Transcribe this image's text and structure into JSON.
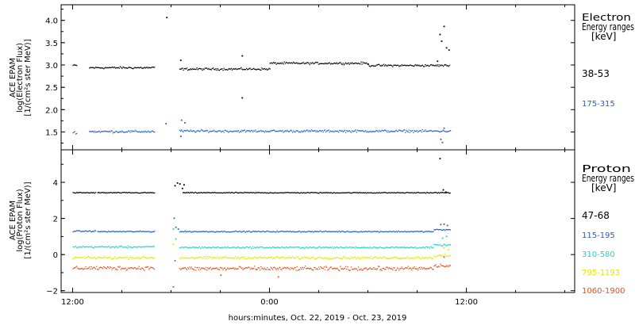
{
  "chart_data": [
    {
      "type": "scatter",
      "ylabel_lines": [
        "ACE EPAM",
        "log(Electron Flux)",
        "[1/(cm²s ster MeV)]"
      ],
      "ylim": [
        1.1,
        4.35
      ],
      "yticks": [
        1.5,
        2.0,
        2.5,
        3.0,
        3.5,
        4.0
      ],
      "ytick_labels": [
        "1.5",
        "2.0",
        "2.5",
        "3.0",
        "3.5",
        "4.0"
      ],
      "legend": {
        "title_lines": [
          "Electron",
          "Energy ranges",
          "[keV]"
        ],
        "entries": [
          "38-53",
          "175-315"
        ]
      },
      "series": [
        {
          "name": "38-53",
          "color": "#000000",
          "segments": [
            {
              "x": [
                0.0,
                0.25
              ],
              "base": 3.0
            },
            {
              "x": [
                1.0,
                5.0
              ],
              "base": 2.95
            },
            {
              "x": [
                6.5,
                12.0
              ],
              "base": 2.92
            },
            {
              "x": [
                12.0,
                18.0
              ],
              "base": 3.05
            },
            {
              "x": [
                18.0,
                23.0
              ],
              "base": 3.0
            }
          ],
          "noise": 0.035,
          "extra_points": [
            [
              5.7,
              4.08
            ],
            [
              6.55,
              3.12
            ],
            [
              10.3,
              3.22
            ],
            [
              10.3,
              2.28
            ],
            [
              22.2,
              3.1
            ],
            [
              22.35,
              3.7
            ],
            [
              22.45,
              3.55
            ],
            [
              22.6,
              3.88
            ],
            [
              22.75,
              3.4
            ],
            [
              22.9,
              3.35
            ]
          ]
        },
        {
          "name": "175-315",
          "color": "#1f5fd6",
          "segments": [
            {
              "x": [
                0.0,
                0.25
              ],
              "base": 1.5
            },
            {
              "x": [
                1.0,
                5.0
              ],
              "base": 1.52
            },
            {
              "x": [
                6.5,
                23.0
              ],
              "base": 1.53
            }
          ],
          "noise": 0.04,
          "extra_points": [
            [
              5.65,
              1.7
            ],
            [
              6.6,
              1.78
            ],
            [
              6.8,
              1.72
            ],
            [
              6.55,
              1.42
            ],
            [
              22.4,
              1.35
            ],
            [
              22.5,
              1.28
            ],
            [
              22.6,
              1.6
            ]
          ]
        }
      ]
    },
    {
      "type": "scatter",
      "ylabel_lines": [
        "ACE EPAM",
        "log(Proton Flux)",
        "[1/(cm²s ster MeV)]"
      ],
      "ylim": [
        -2.1,
        5.8
      ],
      "yticks": [
        -2,
        0,
        2,
        4
      ],
      "ytick_labels": [
        "−2",
        "0",
        "2",
        "4"
      ],
      "legend": {
        "title_lines": [
          "Proton",
          "Energy ranges",
          "[keV]"
        ],
        "entries": [
          "47-68",
          "115-195",
          "310-580",
          "795-1193",
          "1060-1900"
        ]
      },
      "series": [
        {
          "name": "47-68",
          "color": "#000000",
          "segments": [
            {
              "x": [
                0.0,
                1.4
              ],
              "base": 3.45
            },
            {
              "x": [
                1.5,
                5.0
              ],
              "base": 3.45
            },
            {
              "x": [
                6.7,
                23.0
              ],
              "base": 3.45
            }
          ],
          "noise": 0.04,
          "extra_points": [
            [
              6.2,
              3.85
            ],
            [
              6.35,
              4.0
            ],
            [
              6.5,
              3.95
            ],
            [
              6.65,
              3.7
            ],
            [
              6.75,
              3.9
            ],
            [
              22.35,
              5.35
            ],
            [
              22.55,
              3.62
            ],
            [
              22.7,
              3.5
            ]
          ]
        },
        {
          "name": "115-195",
          "color": "#1f5fd6",
          "segments": [
            {
              "x": [
                0.0,
                1.4
              ],
              "base": 1.32
            },
            {
              "x": [
                1.5,
                5.0
              ],
              "base": 1.3
            },
            {
              "x": [
                6.5,
                22.0
              ],
              "base": 1.3
            },
            {
              "x": [
                22.0,
                23.0
              ],
              "base": 1.4
            }
          ],
          "noise": 0.05,
          "extra_points": [
            [
              6.15,
              2.05
            ],
            [
              6.25,
              1.55
            ],
            [
              6.4,
              1.45
            ],
            [
              22.4,
              1.7
            ],
            [
              22.6,
              1.72
            ],
            [
              22.8,
              1.65
            ]
          ]
        },
        {
          "name": "310-580",
          "color": "#22d3d3",
          "segments": [
            {
              "x": [
                0.0,
                5.0
              ],
              "base": 0.45
            },
            {
              "x": [
                6.5,
                22.0
              ],
              "base": 0.42
            },
            {
              "x": [
                22.0,
                23.0
              ],
              "base": 0.55
            }
          ],
          "noise": 0.07,
          "extra_points": [
            [
              6.1,
              1.45
            ],
            [
              6.25,
              0.9
            ],
            [
              22.5,
              0.95
            ],
            [
              22.75,
              1.05
            ]
          ]
        },
        {
          "name": "795-1193",
          "color": "#e6e600",
          "segments": [
            {
              "x": [
                0.0,
                5.0
              ],
              "base": -0.15
            },
            {
              "x": [
                6.5,
                22.0
              ],
              "base": -0.15
            },
            {
              "x": [
                22.0,
                23.0
              ],
              "base": -0.05
            }
          ],
          "noise": 0.1,
          "extra_points": [
            [
              6.1,
              0.6
            ],
            [
              22.6,
              0.4
            ],
            [
              22.85,
              0.3
            ]
          ]
        },
        {
          "name": "1060-1900",
          "color": "#e8501a",
          "segments": [
            {
              "x": [
                0.0,
                5.0
              ],
              "base": -0.72
            },
            {
              "x": [
                6.5,
                22.0
              ],
              "base": -0.75
            },
            {
              "x": [
                22.0,
                23.0
              ],
              "base": -0.6
            }
          ],
          "noise": 0.16,
          "extra_points": [
            [
              6.1,
              -1.75
            ],
            [
              6.2,
              -0.3
            ],
            [
              9.0,
              -1.1
            ],
            [
              12.5,
              -1.2
            ],
            [
              22.6,
              -0.1
            ]
          ]
        }
      ]
    }
  ],
  "x_axis": {
    "range_hours": [
      -0.7,
      30.6
    ],
    "ticks": [
      0,
      12,
      24
    ],
    "tick_labels": [
      "12:00",
      "0:00",
      "12:00"
    ],
    "label": "hours:minutes, Oct. 22, 2019 - Oct. 23, 2019"
  }
}
